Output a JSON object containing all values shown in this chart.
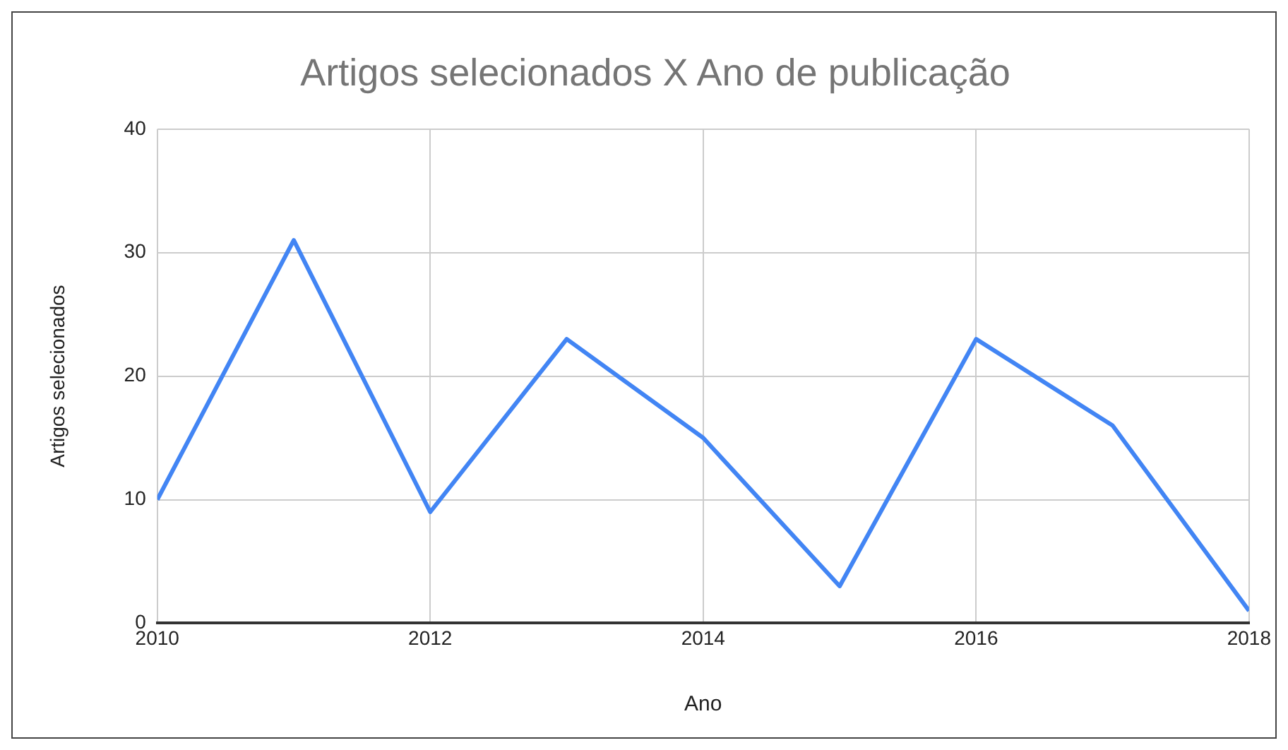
{
  "chart_data": {
    "type": "line",
    "title": "Artigos selecionados X Ano de publicação",
    "xlabel": "Ano",
    "ylabel": "Artigos selecionados",
    "x": [
      2010,
      2011,
      2012,
      2013,
      2014,
      2015,
      2016,
      2017,
      2018
    ],
    "series": [
      {
        "color": "#4285f4",
        "values": [
          10,
          31,
          9,
          23,
          15,
          3,
          23,
          16,
          1
        ]
      }
    ],
    "xlim": [
      2010,
      2018
    ],
    "xticks": [
      2010,
      2012,
      2014,
      2016,
      2018
    ],
    "ylim": [
      0,
      40
    ],
    "yticks": [
      0,
      10,
      20,
      30,
      40
    ],
    "grid": true,
    "legend": false,
    "marker": "none",
    "line_style": "solid"
  }
}
